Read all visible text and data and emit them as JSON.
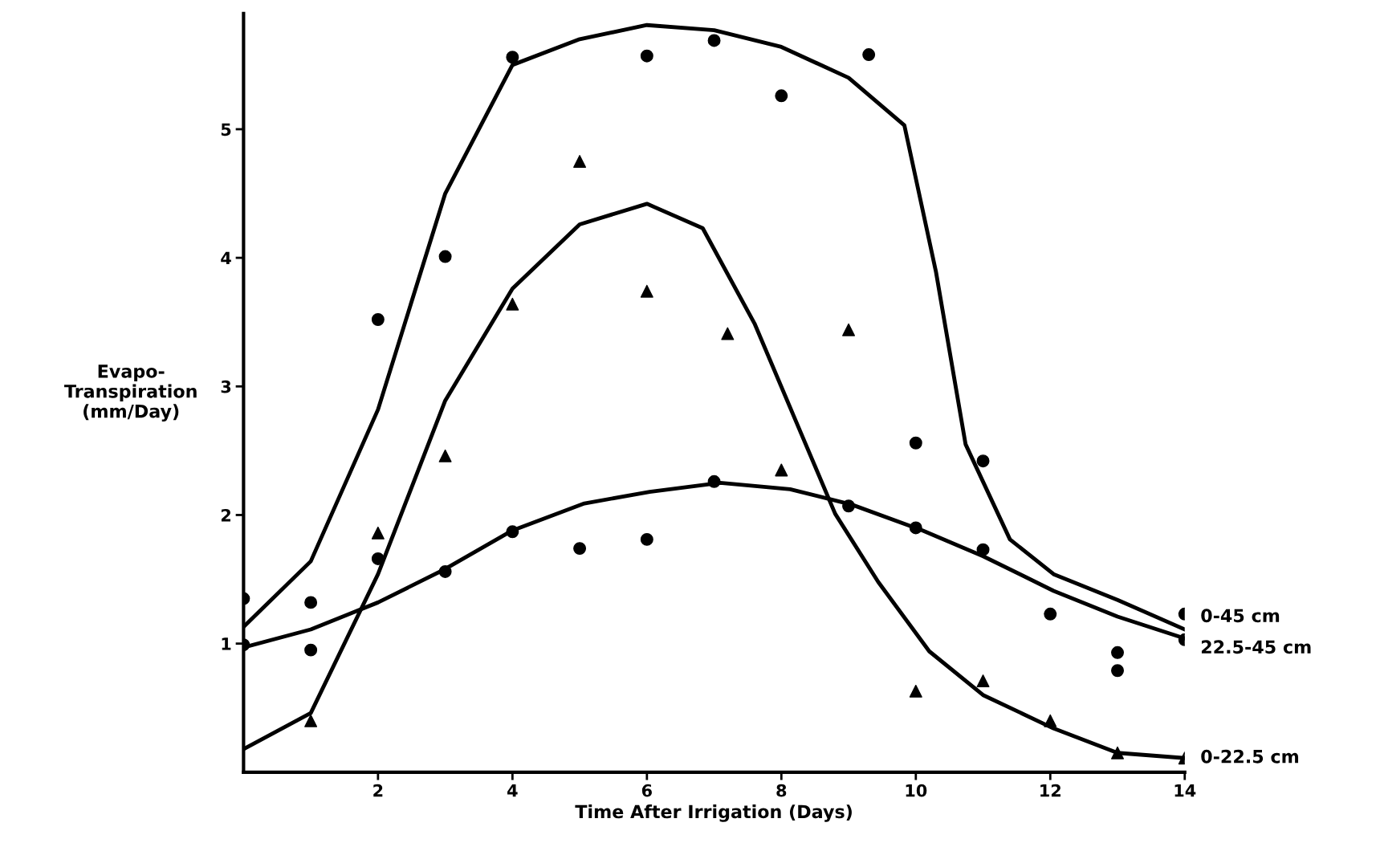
{
  "chart_data": {
    "type": "scatter",
    "xlabel": "Time After Irrigation (Days)",
    "ylabel": "Evapo-\nTranspiration\n(mm/Day)",
    "xlim": [
      0,
      14
    ],
    "ylim": [
      0,
      5.9
    ],
    "xticks": [
      2,
      4,
      6,
      8,
      10,
      12,
      14
    ],
    "yticks": [
      1,
      2,
      3,
      4,
      5
    ],
    "grid": false,
    "legend": false,
    "series": [
      {
        "marker": "circle",
        "color": "#000000",
        "x": [
          0,
          1,
          2,
          3,
          4,
          6,
          7,
          8,
          9.3,
          10,
          11,
          13,
          14
        ],
        "values": [
          1.35,
          1.32,
          3.52,
          4.01,
          5.56,
          5.57,
          5.69,
          5.26,
          5.58,
          2.56,
          2.42,
          0.93,
          1.23
        ]
      },
      {
        "marker": "circle",
        "color": "#000000",
        "x": [
          0,
          1,
          2,
          3,
          4,
          5,
          6,
          7,
          9,
          10,
          11,
          12,
          13,
          14
        ],
        "values": [
          0.99,
          0.95,
          1.66,
          1.56,
          1.87,
          1.74,
          1.81,
          2.26,
          2.07,
          1.9,
          1.73,
          1.23,
          0.79,
          1.03
        ]
      },
      {
        "marker": "triangle",
        "color": "#000000",
        "x": [
          1,
          2,
          3,
          4,
          5,
          6,
          7.2,
          8,
          9,
          10,
          11,
          12,
          13,
          14
        ],
        "values": [
          0.4,
          1.86,
          2.46,
          3.64,
          4.75,
          3.74,
          3.41,
          2.35,
          3.44,
          0.63,
          0.71,
          0.4,
          0.15,
          0.11
        ]
      },
      {
        "type": "line",
        "name": "0-45 cm",
        "color": "#000000",
        "line_style": "solid",
        "marker": "none",
        "x": [
          0,
          1,
          2,
          3,
          4,
          5,
          6,
          7,
          8,
          9,
          9.83,
          10.3,
          10.74,
          11.4,
          12.05,
          13,
          14
        ],
        "values": [
          1.13,
          1.64,
          2.82,
          4.5,
          5.5,
          5.7,
          5.81,
          5.77,
          5.64,
          5.4,
          5.03,
          3.89,
          2.55,
          1.81,
          1.54,
          1.34,
          1.11
        ]
      },
      {
        "type": "line",
        "name": "22.5-45 cm",
        "color": "#000000",
        "line_style": "solid",
        "marker": "none",
        "x": [
          0,
          1,
          2,
          3,
          4,
          5.07,
          6.04,
          7.09,
          8.13,
          9.05,
          10.1,
          11,
          12.05,
          13,
          14
        ],
        "values": [
          0.97,
          1.11,
          1.32,
          1.58,
          1.88,
          2.09,
          2.18,
          2.25,
          2.2,
          2.08,
          1.88,
          1.68,
          1.41,
          1.21,
          1.04
        ]
      },
      {
        "type": "line",
        "name": "0-22.5 cm",
        "color": "#000000",
        "line_style": "solid",
        "marker": "none",
        "x": [
          0,
          1,
          2,
          3,
          4,
          5,
          6,
          6.83,
          7.6,
          8.2,
          8.8,
          9.44,
          10.2,
          11,
          12.05,
          13,
          14
        ],
        "values": [
          0.18,
          0.46,
          1.54,
          2.89,
          3.76,
          4.26,
          4.42,
          4.23,
          3.49,
          2.75,
          2.01,
          1.48,
          0.94,
          0.6,
          0.34,
          0.15,
          0.11
        ]
      }
    ]
  }
}
